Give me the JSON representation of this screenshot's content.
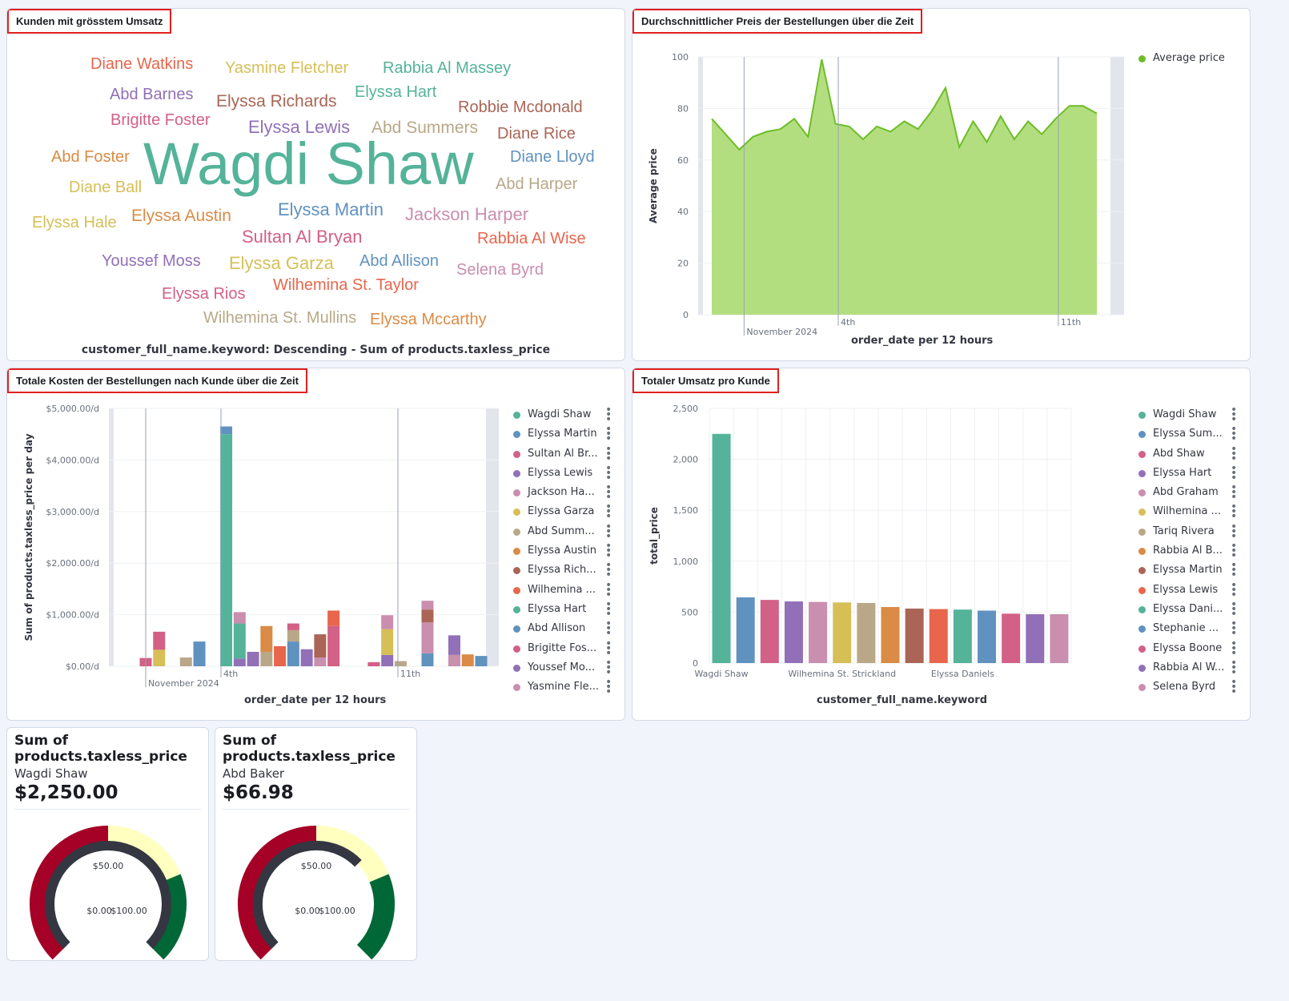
{
  "panels": {
    "wordcloud": {
      "title": "Kunden mit grösstem Umsatz",
      "caption": "customer_full_name.keyword: Descending - Sum of products.taxless_price",
      "words": [
        {
          "text": "Diane Watkins",
          "color": "#e7664c"
        },
        {
          "text": "Yasmine Fletcher",
          "color": "#d6bf57"
        },
        {
          "text": "Rabbia Al Massey",
          "color": "#54b399"
        },
        {
          "text": "Abd Barnes",
          "color": "#9170b8"
        },
        {
          "text": "Elyssa Richards",
          "color": "#aa6556"
        },
        {
          "text": "Elyssa Hart",
          "color": "#54b399"
        },
        {
          "text": "Robbie Mcdonald",
          "color": "#aa6556"
        },
        {
          "text": "Brigitte Foster",
          "color": "#d36086"
        },
        {
          "text": "Elyssa Lewis",
          "color": "#9170b8"
        },
        {
          "text": "Abd Summers",
          "color": "#b9a888"
        },
        {
          "text": "Diane Rice",
          "color": "#aa6556"
        },
        {
          "text": "Abd Foster",
          "color": "#da8b45"
        },
        {
          "text": "Wagdi Shaw",
          "color": "#54b399"
        },
        {
          "text": "Diane Lloyd",
          "color": "#6092c0"
        },
        {
          "text": "Diane Ball",
          "color": "#d6bf57"
        },
        {
          "text": "Abd Harper",
          "color": "#b9a888"
        },
        {
          "text": "Elyssa Hale",
          "color": "#d6bf57"
        },
        {
          "text": "Elyssa Austin",
          "color": "#da8b45"
        },
        {
          "text": "Elyssa Martin",
          "color": "#6092c0"
        },
        {
          "text": "Jackson Harper",
          "color": "#ca8eae"
        },
        {
          "text": "Sultan Al Bryan",
          "color": "#d36086"
        },
        {
          "text": "Rabbia Al Wise",
          "color": "#e7664c"
        },
        {
          "text": "Youssef Moss",
          "color": "#9170b8"
        },
        {
          "text": "Elyssa Garza",
          "color": "#d6bf57"
        },
        {
          "text": "Abd Allison",
          "color": "#6092c0"
        },
        {
          "text": "Selena Byrd",
          "color": "#ca8eae"
        },
        {
          "text": "Elyssa Rios",
          "color": "#d36086"
        },
        {
          "text": "Wilhemina St. Taylor",
          "color": "#e7664c"
        },
        {
          "text": "Wilhemina St. Mullins",
          "color": "#b9a888"
        },
        {
          "text": "Elyssa Mccarthy",
          "color": "#da8b45"
        }
      ]
    },
    "avgprice": {
      "title": "Durchschnittlicher Preis der Bestellungen über die Zeit"
    },
    "totalcost": {
      "title": "Totale Kosten der Bestellungen nach Kunde über die Zeit"
    },
    "revenue": {
      "title": "Totaler Umsatz pro Kunde"
    }
  },
  "chart_data": [
    {
      "type": "area",
      "xlabel": "order_date per 12 hours",
      "ylabel": "Average price",
      "ylim": [
        0,
        100
      ],
      "yticks": [
        "0",
        "20",
        "40",
        "60",
        "80",
        "100"
      ],
      "xticks": [
        "November 2024",
        "4th",
        "11th"
      ],
      "legend": [
        {
          "name": "Average price",
          "color": "#6dbd28"
        }
      ],
      "fill_color": "#b3de80",
      "line_color": "#6dbd28",
      "grid": true,
      "series": [
        {
          "name": "Average price",
          "values": [
            76,
            70,
            64,
            69,
            71,
            72,
            76,
            69,
            99,
            74,
            73,
            68,
            73,
            71,
            75,
            72,
            79,
            88,
            65,
            75,
            67,
            77,
            68,
            75,
            70,
            76,
            81,
            81,
            78
          ]
        }
      ]
    },
    {
      "type": "bar",
      "xlabel": "order_date per 12 hours",
      "ylabel": "Sum of products.taxless_price per day",
      "ylim": [
        0,
        5000
      ],
      "yticks": [
        "$0.00/d",
        "$1,000.00/d",
        "$2,000.00/d",
        "$3,000.00/d",
        "$4,000.00/d",
        "$5,000.00/d"
      ],
      "xticks": [
        "November 2024",
        "4th",
        "11th"
      ],
      "stacked": true,
      "legend_position": "right",
      "legend": [
        {
          "name": "Wagdi Shaw",
          "color": "#54b399"
        },
        {
          "name": "Elyssa Martin",
          "color": "#6092c0"
        },
        {
          "name": "Sultan Al Br...",
          "color": "#d36086"
        },
        {
          "name": "Elyssa Lewis",
          "color": "#9170b8"
        },
        {
          "name": "Jackson Ha...",
          "color": "#ca8eae"
        },
        {
          "name": "Elyssa Garza",
          "color": "#d6bf57"
        },
        {
          "name": "Abd Summ...",
          "color": "#b9a888"
        },
        {
          "name": "Elyssa Austin",
          "color": "#da8b45"
        },
        {
          "name": "Elyssa Rich...",
          "color": "#aa6556"
        },
        {
          "name": "Wilhemina ...",
          "color": "#e7664c"
        },
        {
          "name": "Elyssa Hart",
          "color": "#54b399"
        },
        {
          "name": "Abd Allison",
          "color": "#6092c0"
        },
        {
          "name": "Brigitte Fos...",
          "color": "#d36086"
        },
        {
          "name": "Youssef Mo...",
          "color": "#9170b8"
        },
        {
          "name": "Yasmine Fle...",
          "color": "#ca8eae"
        }
      ],
      "columns": [
        [
          {
            "color": "#d36086",
            "value": 160
          }
        ],
        [
          {
            "color": "#d6bf57",
            "value": 320
          },
          {
            "color": "#d36086",
            "value": 350
          }
        ],
        [],
        [
          {
            "color": "#b9a888",
            "value": 170
          }
        ],
        [
          {
            "color": "#6092c0",
            "value": 480
          }
        ],
        [],
        [
          {
            "color": "#54b399",
            "value": 4500
          },
          {
            "color": "#6092c0",
            "value": 150
          }
        ],
        [
          {
            "color": "#9170b8",
            "value": 150
          },
          {
            "color": "#54b399",
            "value": 680
          },
          {
            "color": "#ca8eae",
            "value": 220
          }
        ],
        [
          {
            "color": "#9170b8",
            "value": 280
          }
        ],
        [
          {
            "color": "#b9a888",
            "value": 280
          },
          {
            "color": "#da8b45",
            "value": 500
          }
        ],
        [
          {
            "color": "#e7664c",
            "value": 390
          }
        ],
        [
          {
            "color": "#6092c0",
            "value": 480
          },
          {
            "color": "#b9a888",
            "value": 220
          },
          {
            "color": "#d36086",
            "value": 130
          }
        ],
        [
          {
            "color": "#9170b8",
            "value": 330
          }
        ],
        [
          {
            "color": "#ca8eae",
            "value": 170
          },
          {
            "color": "#aa6556",
            "value": 450
          }
        ],
        [
          {
            "color": "#d36086",
            "value": 780
          },
          {
            "color": "#e7664c",
            "value": 300
          }
        ],
        [],
        [],
        [
          {
            "color": "#d36086",
            "value": 80
          }
        ],
        [
          {
            "color": "#9170b8",
            "value": 220
          },
          {
            "color": "#d6bf57",
            "value": 500
          },
          {
            "color": "#ca8eae",
            "value": 270
          }
        ],
        [
          {
            "color": "#b9a888",
            "value": 100
          }
        ],
        [],
        [
          {
            "color": "#6092c0",
            "value": 250
          },
          {
            "color": "#ca8eae",
            "value": 600
          },
          {
            "color": "#aa6556",
            "value": 250
          },
          {
            "color": "#ca8eae",
            "value": 170
          }
        ],
        [],
        [
          {
            "color": "#ca8eae",
            "value": 220
          },
          {
            "color": "#9170b8",
            "value": 380
          }
        ],
        [
          {
            "color": "#da8b45",
            "value": 230
          }
        ],
        [
          {
            "color": "#6092c0",
            "value": 200
          }
        ]
      ]
    },
    {
      "type": "bar",
      "xlabel": "customer_full_name.keyword",
      "ylabel": "total_price",
      "ylim": [
        0,
        2500
      ],
      "yticks": [
        "0",
        "500",
        "1,000",
        "1,500",
        "2,000",
        "2,500"
      ],
      "xtick_labels": [
        {
          "label": "Wagdi Shaw",
          "index": 0
        },
        {
          "label": "Wilhemina St. Strickland",
          "index": 5
        },
        {
          "label": "Elyssa Daniels",
          "index": 10
        }
      ],
      "legend_position": "right",
      "categories": [
        "Wagdi Shaw",
        "Elyssa Sum...",
        "Abd Shaw",
        "Elyssa Hart",
        "Abd Graham",
        "Wilhemina ...",
        "Tariq Rivera",
        "Rabbia Al B...",
        "Elyssa Martin",
        "Elyssa Lewis",
        "Elyssa Dani...",
        "Stephanie ...",
        "Elyssa Boone",
        "Rabbia Al W...",
        "Selena Byrd"
      ],
      "values": [
        2250,
        645,
        620,
        605,
        600,
        595,
        590,
        550,
        535,
        530,
        525,
        515,
        485,
        480,
        480
      ],
      "colors": [
        "#54b399",
        "#6092c0",
        "#d36086",
        "#9170b8",
        "#ca8eae",
        "#d6bf57",
        "#b9a888",
        "#da8b45",
        "#aa6556",
        "#e7664c",
        "#54b399",
        "#6092c0",
        "#d36086",
        "#9170b8",
        "#ca8eae"
      ]
    }
  ],
  "metrics": [
    {
      "title_line1": "Sum of",
      "title_line2": "products.taxless_price",
      "subtitle": "Wagdi Shaw",
      "value": "$2,250.00",
      "gauge_labels": {
        "mid": "$50.00",
        "min": "$0.00",
        "max": "$100.00"
      },
      "gauge_fill": 1.0,
      "colors": {
        "low": "#a50026",
        "mid": "#ffffbf",
        "high": "#006837",
        "needle": "#343741"
      }
    },
    {
      "title_line1": "Sum of",
      "title_line2": "products.taxless_price",
      "subtitle": "Abd Baker",
      "value": "$66.98",
      "gauge_labels": {
        "mid": "$50.00",
        "min": "$0.00",
        "max": "$100.00"
      },
      "gauge_fill": 0.67,
      "colors": {
        "low": "#a50026",
        "mid": "#ffffbf",
        "high": "#006837",
        "needle": "#343741"
      }
    }
  ]
}
